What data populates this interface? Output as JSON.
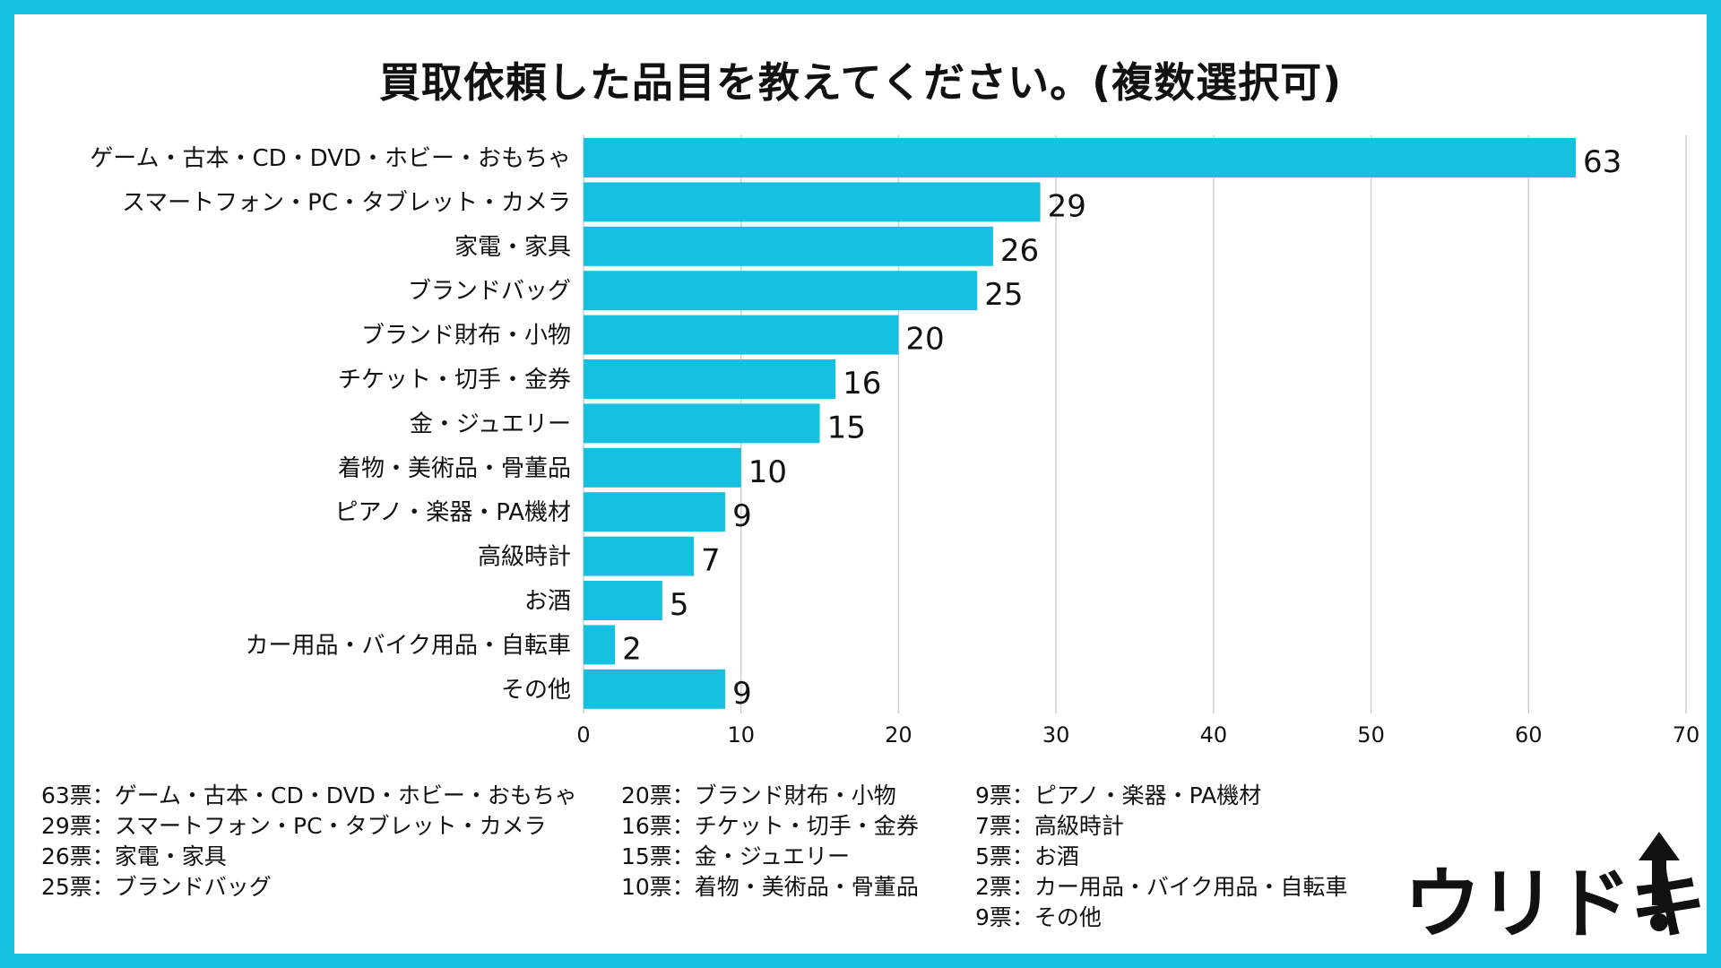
{
  "chart_data": {
    "type": "bar",
    "orientation": "horizontal",
    "title": "買取依頼した品目を教えてください。(複数選択可)",
    "categories": [
      "ゲーム・古本・CD・DVD・ホビー・おもちゃ",
      "スマートフォン・PC・タブレット・カメラ",
      "家電・家具",
      "ブランドバッグ",
      "ブランド財布・小物",
      "チケット・切手・金券",
      "金・ジュエリー",
      "着物・美術品・骨董品",
      "ピアノ・楽器・PA機材",
      "高級時計",
      "お酒",
      "カー用品・バイク用品・自転車",
      "その他"
    ],
    "values": [
      63,
      29,
      26,
      25,
      20,
      16,
      15,
      10,
      9,
      7,
      5,
      2,
      9
    ],
    "value_labels": [
      "63",
      "29",
      "26",
      "25",
      "20",
      "16",
      "15",
      "10",
      "9",
      "7",
      "5",
      "2",
      "9"
    ],
    "xlim": [
      0,
      70
    ],
    "xticks": [
      0,
      10,
      20,
      30,
      40,
      50,
      60,
      70
    ],
    "xtick_labels": [
      "0",
      "10",
      "20",
      "30",
      "40",
      "50",
      "60",
      "70"
    ],
    "grid": true,
    "bar_color": "#16c0e0"
  },
  "legend": {
    "col1": [
      "63票：ゲーム・古本・CD・DVD・ホビー・おもちゃ",
      "29票：スマートフォン・PC・タブレット・カメラ",
      "26票：家電・家具",
      "25票：ブランドバッグ"
    ],
    "col2": [
      "20票：ブランド財布・小物",
      "16票：チケット・切手・金券",
      "15票：金・ジュエリー",
      "10票：着物・美術品・骨董品"
    ],
    "col3": [
      "9票：ピアノ・楽器・PA機材",
      "7票：高級時計",
      "5票：お酒",
      "2票：カー用品・バイク用品・自転車",
      "9票：その他"
    ]
  },
  "logo": {
    "text": "ウリドキ",
    "icon": "up-arrow-icon"
  },
  "colors": {
    "border": "#16c0e0",
    "background": "#ffffff",
    "text": "#111111",
    "grid": "#d0d0d0"
  }
}
